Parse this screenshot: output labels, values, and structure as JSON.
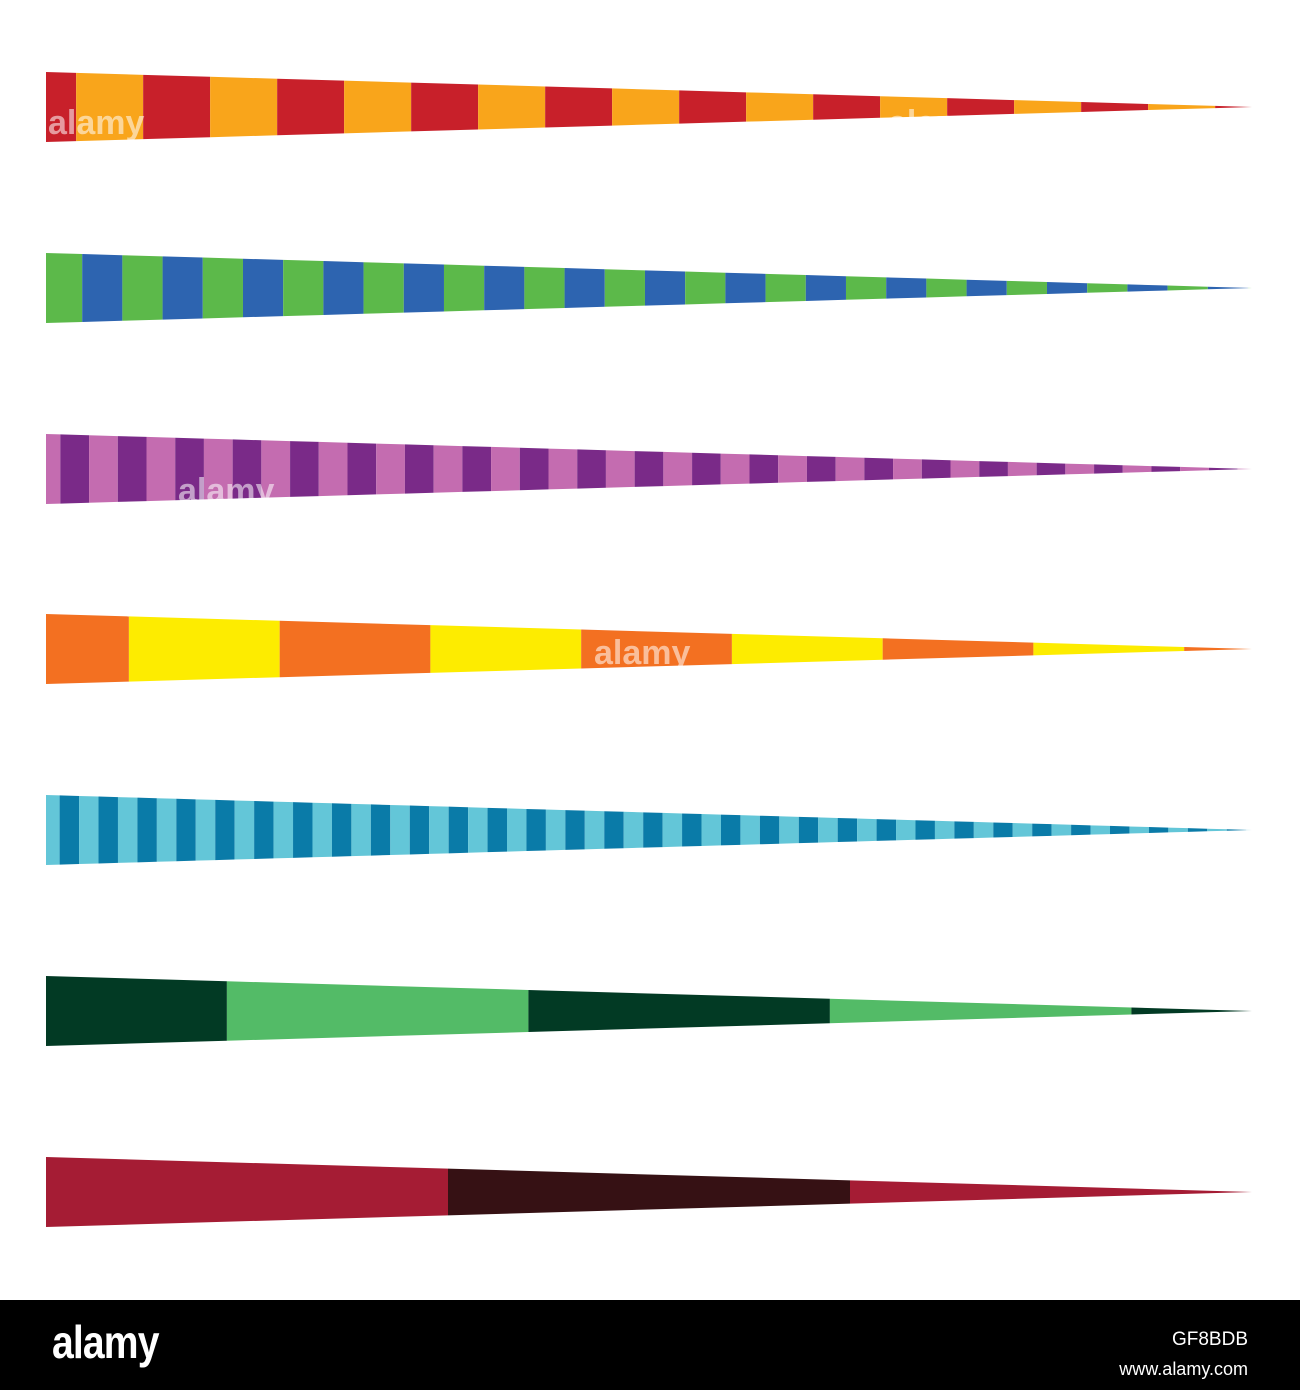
{
  "spikes": [
    {
      "name": "red-orange",
      "stripes": 18,
      "colors": [
        "#c8202a",
        "#f9a51b"
      ]
    },
    {
      "name": "green-blue",
      "stripes": 30,
      "colors": [
        "#5cb94a",
        "#2d64b0"
      ]
    },
    {
      "name": "purple",
      "stripes": 42,
      "colors": [
        "#c46cb0",
        "#7a2a88"
      ]
    },
    {
      "name": "orange-yellow",
      "stripes": 8,
      "colors": [
        "#f37021",
        "#fdec00"
      ]
    },
    {
      "name": "blue",
      "stripes": 62,
      "colors": [
        "#63c6d8",
        "#0a7ba8"
      ]
    },
    {
      "name": "green",
      "stripes": 4,
      "colors": [
        "#023a24",
        "#53bb67"
      ]
    },
    {
      "name": "crimson",
      "stripes": 3,
      "colors": [
        "#a51c34",
        "#361114"
      ]
    }
  ],
  "watermark": {
    "text": "alamy",
    "color": "rgba(255,255,255,0.55)"
  },
  "footer": {
    "brand": "alamy",
    "image_code": "GF8BDB",
    "url": "www.alamy.com",
    "background": "#000000",
    "text_color": "#ffffff"
  }
}
